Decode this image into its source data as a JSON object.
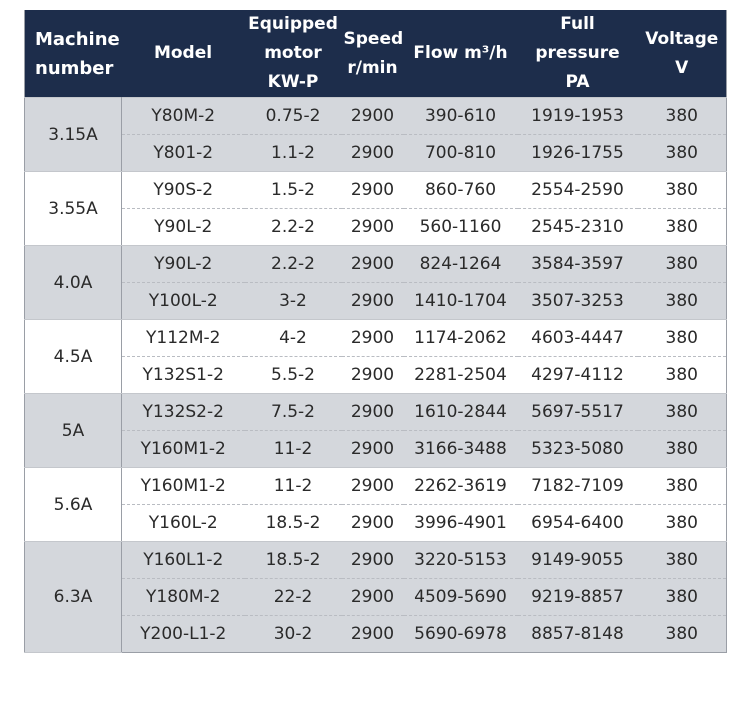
{
  "header": {
    "machine": [
      "Machine",
      "number"
    ],
    "model": "Model",
    "motor": [
      "Equipped",
      "motor",
      "KW-P"
    ],
    "speed": [
      "Speed",
      "r/min"
    ],
    "flow": "Flow m³/h",
    "pressure": [
      "Full pressure",
      "PA"
    ],
    "voltage": [
      "Voltage",
      "V"
    ]
  },
  "colors": {
    "header_bg": "#1d2d4b",
    "shade_bg": "#d4d7dc",
    "plain_bg": "#ffffff"
  },
  "groups": [
    {
      "machine": "3.15A",
      "shaded": true,
      "rows": [
        {
          "model": "Y80M-2",
          "motor": "0.75-2",
          "speed": "2900",
          "flow": "390-610",
          "pressure": "1919-1953",
          "voltage": "380"
        },
        {
          "model": "Y801-2",
          "motor": "1.1-2",
          "speed": "2900",
          "flow": "700-810",
          "pressure": "1926-1755",
          "voltage": "380"
        }
      ]
    },
    {
      "machine": "3.55A",
      "shaded": false,
      "rows": [
        {
          "model": "Y90S-2",
          "motor": "1.5-2",
          "speed": "2900",
          "flow": "860-760",
          "pressure": "2554-2590",
          "voltage": "380"
        },
        {
          "model": "Y90L-2",
          "motor": "2.2-2",
          "speed": "2900",
          "flow": "560-1160",
          "pressure": "2545-2310",
          "voltage": "380"
        }
      ]
    },
    {
      "machine": "4.0A",
      "shaded": true,
      "rows": [
        {
          "model": "Y90L-2",
          "motor": "2.2-2",
          "speed": "2900",
          "flow": "824-1264",
          "pressure": "3584-3597",
          "voltage": "380"
        },
        {
          "model": "Y100L-2",
          "motor": "3-2",
          "speed": "2900",
          "flow": "1410-1704",
          "pressure": "3507-3253",
          "voltage": "380"
        }
      ]
    },
    {
      "machine": "4.5A",
      "shaded": false,
      "rows": [
        {
          "model": "Y112M-2",
          "motor": "4-2",
          "speed": "2900",
          "flow": "1174-2062",
          "pressure": "4603-4447",
          "voltage": "380"
        },
        {
          "model": "Y132S1-2",
          "motor": "5.5-2",
          "speed": "2900",
          "flow": "2281-2504",
          "pressure": "4297-4112",
          "voltage": "380"
        }
      ]
    },
    {
      "machine": "5A",
      "shaded": true,
      "rows": [
        {
          "model": "Y132S2-2",
          "motor": "7.5-2",
          "speed": "2900",
          "flow": "1610-2844",
          "pressure": "5697-5517",
          "voltage": "380"
        },
        {
          "model": "Y160M1-2",
          "motor": "11-2",
          "speed": "2900",
          "flow": "3166-3488",
          "pressure": "5323-5080",
          "voltage": "380"
        }
      ]
    },
    {
      "machine": "5.6A",
      "shaded": false,
      "rows": [
        {
          "model": "Y160M1-2",
          "motor": "11-2",
          "speed": "2900",
          "flow": "2262-3619",
          "pressure": "7182-7109",
          "voltage": "380"
        },
        {
          "model": "Y160L-2",
          "motor": "18.5-2",
          "speed": "2900",
          "flow": "3996-4901",
          "pressure": "6954-6400",
          "voltage": "380"
        }
      ]
    },
    {
      "machine": "6.3A",
      "shaded": true,
      "rows": [
        {
          "model": "Y160L1-2",
          "motor": "18.5-2",
          "speed": "2900",
          "flow": "3220-5153",
          "pressure": "9149-9055",
          "voltage": "380"
        },
        {
          "model": "Y180M-2",
          "motor": "22-2",
          "speed": "2900",
          "flow": "4509-5690",
          "pressure": "9219-8857",
          "voltage": "380"
        },
        {
          "model": "Y200-L1-2",
          "motor": "30-2",
          "speed": "2900",
          "flow": "5690-6978",
          "pressure": "8857-8148",
          "voltage": "380"
        }
      ]
    }
  ]
}
